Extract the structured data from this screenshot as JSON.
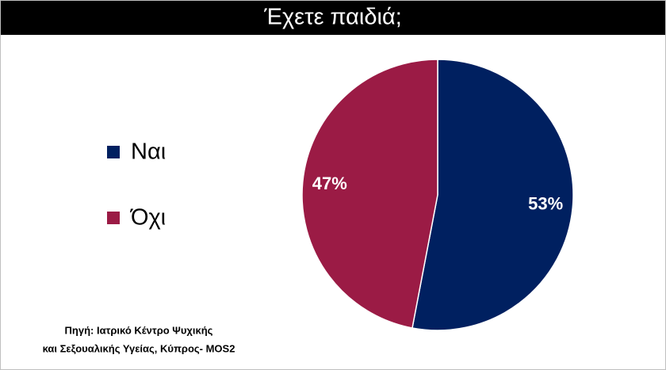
{
  "chart_data": {
    "type": "pie",
    "title": "Έχετε παιδιά;",
    "categories": [
      "Ναι",
      "Όχι"
    ],
    "values": [
      53,
      47
    ],
    "value_labels": [
      "53%",
      "47%"
    ],
    "colors": [
      "#002060",
      "#9b1b45"
    ],
    "legend": "left",
    "source": [
      "Πηγή: Ιατρικό Κέντρο Ψυχικής",
      "και Σεξουαλικής Υγείας, Κύπρος- MOS2"
    ]
  }
}
